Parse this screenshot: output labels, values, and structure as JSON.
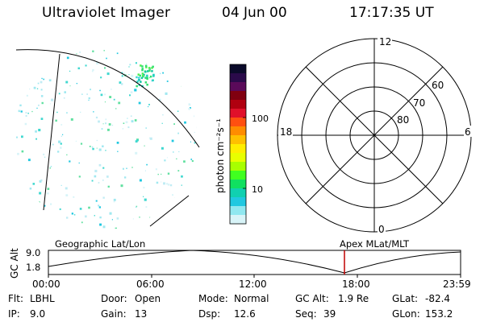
{
  "header": {
    "title": "Ultraviolet Imager",
    "date": "04 Jun 00",
    "time": "17:17:35 UT"
  },
  "colorbar": {
    "label": "photon cm⁻²s⁻¹",
    "tick_labels": [
      "100",
      "10"
    ],
    "colors": [
      "#0a0a2a",
      "#2a0a4a",
      "#5a0a5a",
      "#800010",
      "#b00010",
      "#e0102a",
      "#ff5010",
      "#ff8c00",
      "#ffc000",
      "#ffee00",
      "#e8ff00",
      "#a8ff00",
      "#40ff20",
      "#10e060",
      "#10d0b0",
      "#20c8e0",
      "#90e8f0",
      "#d8f4f8"
    ]
  },
  "polar": {
    "mlt_labels": {
      "top": "12",
      "left": "18",
      "right": "6",
      "bottom": "0"
    },
    "lat_labels": [
      "60",
      "70",
      "80"
    ]
  },
  "altitude_plot": {
    "ylabel": "GC Alt",
    "yticks": [
      "9.0",
      "1.8"
    ],
    "left_caption": "Geographic Lat/Lon",
    "right_caption": "Apex MLat/MLT",
    "xticks": [
      "00:00",
      "06:00",
      "12:00",
      "18:00",
      "23:59"
    ],
    "current_time_marker_color": "#c00000"
  },
  "info": {
    "flt_label": "Flt:",
    "flt_value": "LBHL",
    "ip_label": "IP:",
    "ip_value": "9.0",
    "door_label": "Door:",
    "door_value": "Open",
    "gain_label": "Gain:",
    "gain_value": "13",
    "mode_label": "Mode:",
    "mode_value": "Normal",
    "dsp_label": "Dsp:",
    "dsp_value": "12.6",
    "gcalt_label": "GC Alt:",
    "gcalt_value": "1.9 Re",
    "seq_label": "Seq:",
    "seq_value": "39",
    "glat_label": "GLat:",
    "glat_value": "-82.4",
    "glon_label": "GLon:",
    "glon_value": "153.2"
  }
}
